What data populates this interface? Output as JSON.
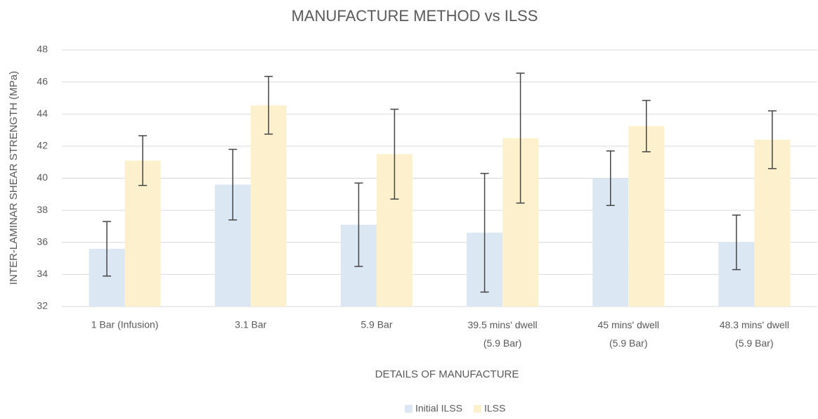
{
  "chart_data": {
    "type": "bar",
    "title": "MANUFACTURE METHOD vs ILSS",
    "x_label": "DETAILS OF MANUFACTURE",
    "y_label": "INTER-LAMINAR SHEAR STRENGTH (MPa)",
    "categories": [
      "1 Bar (Infusion)",
      "3.1 Bar",
      "5.9 Bar",
      "39.5 mins' dwell (5.9 Bar)",
      "45 mins' dwell (5.9 Bar)",
      "48.3 mins' dwell (5.9 Bar)"
    ],
    "series": [
      {
        "name": "Initial ILSS",
        "color": "#dce7f4",
        "values": [
          35.6,
          39.6,
          37.1,
          36.6,
          40.0,
          36.0
        ],
        "errors": [
          1.7,
          2.2,
          2.6,
          3.7,
          1.7,
          1.7
        ]
      },
      {
        "name": "ILSS",
        "color": "#fdf1cd",
        "values": [
          41.1,
          44.55,
          41.5,
          42.5,
          43.25,
          42.4
        ],
        "errors": [
          1.55,
          1.8,
          2.8,
          4.05,
          1.6,
          1.8
        ]
      }
    ],
    "ylim": [
      32,
      48
    ],
    "yticks": [
      32,
      34,
      36,
      38,
      40,
      42,
      44,
      46,
      48
    ],
    "grid": true,
    "legend": "bottom"
  }
}
